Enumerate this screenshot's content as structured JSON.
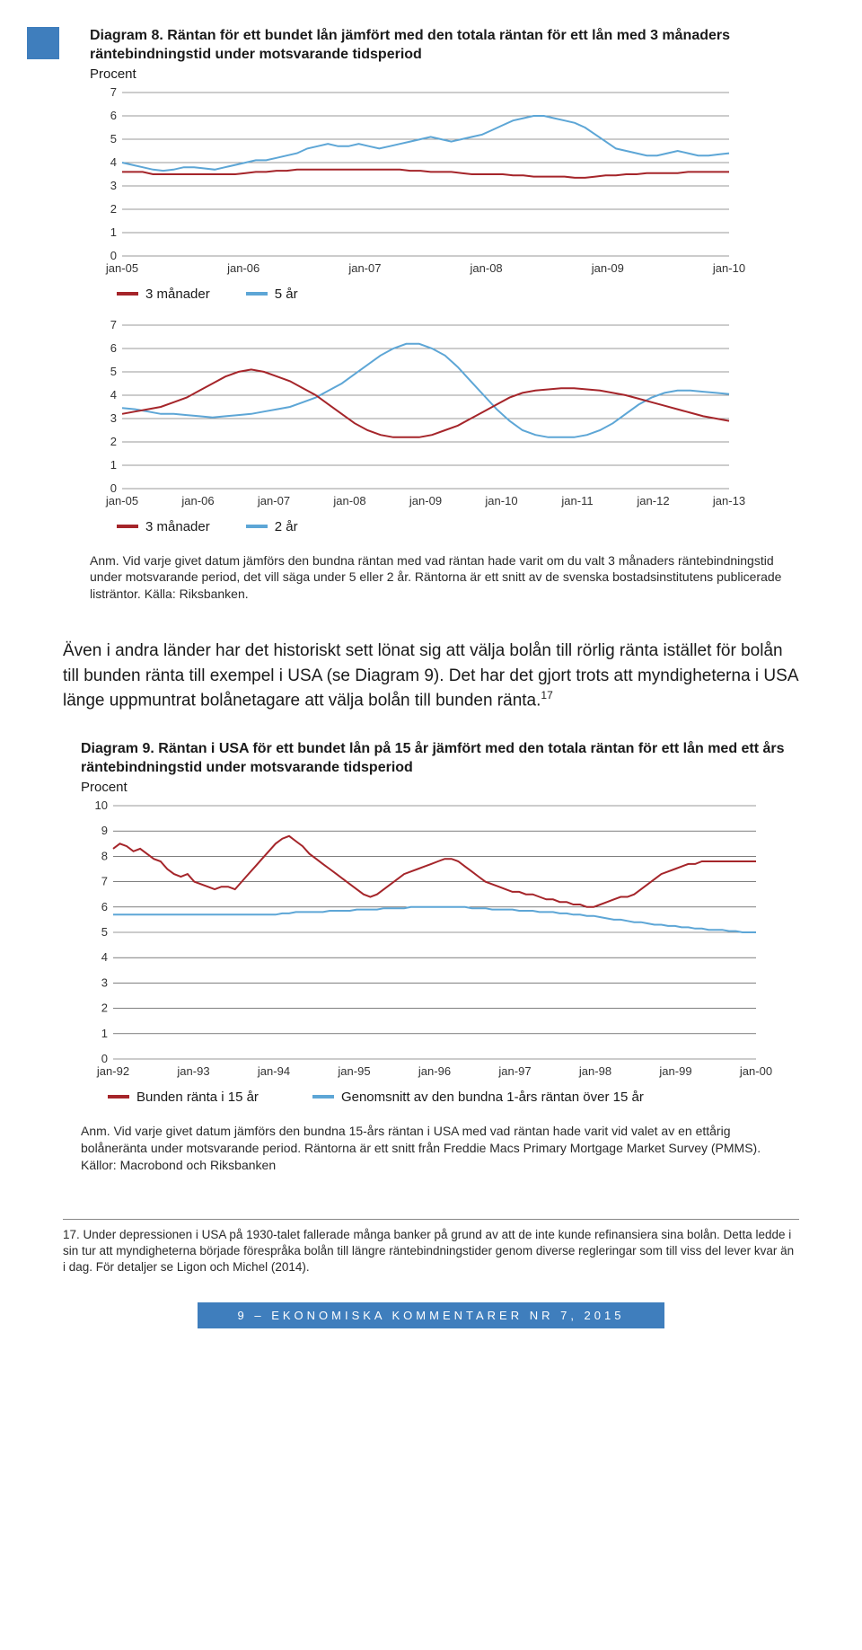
{
  "page": {
    "footer": "9 – EKONOMISKA KOMMENTARER NR 7, 2015",
    "footer_bg": "#3f7ebd"
  },
  "diagram8": {
    "title": "Diagram 8. Räntan för ett bundet lån jämfört med den totala räntan för ett lån med 3 månaders räntebindningstid under motsvarande tidsperiod",
    "subtitle": "Procent",
    "note": "Anm. Vid varje givet datum jämförs den bundna räntan med vad räntan hade varit om du valt 3 månaders räntebindningstid under motsvarande period, det vill säga under 5 eller 2 år. Räntorna är ett snitt av de svenska bostadsinstitutens publicerade listräntor. Källa: Riksbanken.",
    "colors": {
      "red": "#a5252a",
      "blue": "#5da6d6",
      "grid": "#555555",
      "bg": "#ffffff"
    },
    "panelA": {
      "ylim": [
        0,
        7
      ],
      "yticks": [
        0,
        1,
        2,
        3,
        4,
        5,
        6,
        7
      ],
      "xlabels": [
        "jan-05",
        "jan-06",
        "jan-07",
        "jan-08",
        "jan-09",
        "jan-10"
      ],
      "legend": [
        {
          "swatch": "red",
          "label": "3 månader"
        },
        {
          "swatch": "blue",
          "label": "5 år"
        }
      ],
      "red": [
        3.6,
        3.6,
        3.6,
        3.5,
        3.5,
        3.5,
        3.5,
        3.5,
        3.5,
        3.5,
        3.5,
        3.5,
        3.55,
        3.6,
        3.6,
        3.65,
        3.65,
        3.7,
        3.7,
        3.7,
        3.7,
        3.7,
        3.7,
        3.7,
        3.7,
        3.7,
        3.7,
        3.7,
        3.65,
        3.65,
        3.6,
        3.6,
        3.6,
        3.55,
        3.5,
        3.5,
        3.5,
        3.5,
        3.45,
        3.45,
        3.4,
        3.4,
        3.4,
        3.4,
        3.35,
        3.35,
        3.4,
        3.45,
        3.45,
        3.5,
        3.5,
        3.55,
        3.55,
        3.55,
        3.55,
        3.6,
        3.6,
        3.6,
        3.6,
        3.6
      ],
      "blue": [
        4.0,
        3.9,
        3.8,
        3.7,
        3.65,
        3.7,
        3.8,
        3.8,
        3.75,
        3.7,
        3.8,
        3.9,
        4.0,
        4.1,
        4.1,
        4.2,
        4.3,
        4.4,
        4.6,
        4.7,
        4.8,
        4.7,
        4.7,
        4.8,
        4.7,
        4.6,
        4.7,
        4.8,
        4.9,
        5.0,
        5.1,
        5.0,
        4.9,
        5.0,
        5.1,
        5.2,
        5.4,
        5.6,
        5.8,
        5.9,
        6.0,
        6.0,
        5.9,
        5.8,
        5.7,
        5.5,
        5.2,
        4.9,
        4.6,
        4.5,
        4.4,
        4.3,
        4.3,
        4.4,
        4.5,
        4.4,
        4.3,
        4.3,
        4.35,
        4.4
      ]
    },
    "panelB": {
      "ylim": [
        0,
        7
      ],
      "yticks": [
        0,
        1,
        2,
        3,
        4,
        5,
        6,
        7
      ],
      "xlabels": [
        "jan-05",
        "jan-06",
        "jan-07",
        "jan-08",
        "jan-09",
        "jan-10",
        "jan-11",
        "jan-12",
        "jan-13"
      ],
      "legend": [
        {
          "swatch": "red",
          "label": "3 månader"
        },
        {
          "swatch": "blue",
          "label": "2 år"
        }
      ],
      "red": [
        3.2,
        3.3,
        3.4,
        3.5,
        3.7,
        3.9,
        4.2,
        4.5,
        4.8,
        5.0,
        5.1,
        5.0,
        4.8,
        4.6,
        4.3,
        4.0,
        3.6,
        3.2,
        2.8,
        2.5,
        2.3,
        2.2,
        2.2,
        2.2,
        2.3,
        2.5,
        2.7,
        3.0,
        3.3,
        3.6,
        3.9,
        4.1,
        4.2,
        4.25,
        4.3,
        4.3,
        4.25,
        4.2,
        4.1,
        4.0,
        3.85,
        3.7,
        3.55,
        3.4,
        3.25,
        3.1,
        3.0,
        2.9
      ],
      "blue": [
        3.45,
        3.4,
        3.3,
        3.2,
        3.2,
        3.15,
        3.1,
        3.05,
        3.1,
        3.15,
        3.2,
        3.3,
        3.4,
        3.5,
        3.7,
        3.9,
        4.2,
        4.5,
        4.9,
        5.3,
        5.7,
        6.0,
        6.2,
        6.2,
        6.0,
        5.7,
        5.2,
        4.6,
        4.0,
        3.4,
        2.9,
        2.5,
        2.3,
        2.2,
        2.2,
        2.2,
        2.3,
        2.5,
        2.8,
        3.2,
        3.6,
        3.9,
        4.1,
        4.2,
        4.2,
        4.15,
        4.1,
        4.05
      ]
    }
  },
  "prose1": "Även i andra länder har det historiskt sett lönat sig att välja bolån till rörlig ränta istället för bolån till bunden ränta till exempel i USA (se Diagram 9). Det har det gjort trots att myndigheterna i USA länge uppmuntrat bolånetagare att välja bolån till bunden ränta.",
  "prose1_sup": "17",
  "diagram9": {
    "title": "Diagram 9. Räntan i USA för ett bundet lån på 15 år jämfört med den totala räntan för ett lån med ett års räntebindningstid under motsvarande tidsperiod",
    "subtitle": "Procent",
    "ylim": [
      0,
      10
    ],
    "yticks": [
      0,
      1,
      2,
      3,
      4,
      5,
      6,
      7,
      8,
      9,
      10
    ],
    "xlabels": [
      "jan-92",
      "jan-93",
      "jan-94",
      "jan-95",
      "jan-96",
      "jan-97",
      "jan-98",
      "jan-99",
      "jan-00"
    ],
    "colors": {
      "red": "#a5252a",
      "blue": "#5da6d6",
      "grid": "#555555"
    },
    "legend": [
      {
        "swatch": "red",
        "label": "Bunden ränta i 15 år"
      },
      {
        "swatch": "blue",
        "label": "Genomsnitt av den bundna 1-års räntan över 15 år"
      }
    ],
    "red": [
      8.3,
      8.5,
      8.4,
      8.2,
      8.3,
      8.1,
      7.9,
      7.8,
      7.5,
      7.3,
      7.2,
      7.3,
      7.0,
      6.9,
      6.8,
      6.7,
      6.8,
      6.8,
      6.7,
      7.0,
      7.3,
      7.6,
      7.9,
      8.2,
      8.5,
      8.7,
      8.8,
      8.6,
      8.4,
      8.1,
      7.9,
      7.7,
      7.5,
      7.3,
      7.1,
      6.9,
      6.7,
      6.5,
      6.4,
      6.5,
      6.7,
      6.9,
      7.1,
      7.3,
      7.4,
      7.5,
      7.6,
      7.7,
      7.8,
      7.9,
      7.9,
      7.8,
      7.6,
      7.4,
      7.2,
      7.0,
      6.9,
      6.8,
      6.7,
      6.6,
      6.6,
      6.5,
      6.5,
      6.4,
      6.3,
      6.3,
      6.2,
      6.2,
      6.1,
      6.1,
      6.0,
      6.0,
      6.1,
      6.2,
      6.3,
      6.4,
      6.4,
      6.5,
      6.7,
      6.9,
      7.1,
      7.3,
      7.4,
      7.5,
      7.6,
      7.7,
      7.7,
      7.8,
      7.8,
      7.8,
      7.8,
      7.8,
      7.8,
      7.8,
      7.8,
      7.8
    ],
    "blue": [
      5.7,
      5.7,
      5.7,
      5.7,
      5.7,
      5.7,
      5.7,
      5.7,
      5.7,
      5.7,
      5.7,
      5.7,
      5.7,
      5.7,
      5.7,
      5.7,
      5.7,
      5.7,
      5.7,
      5.7,
      5.7,
      5.7,
      5.7,
      5.7,
      5.7,
      5.75,
      5.75,
      5.8,
      5.8,
      5.8,
      5.8,
      5.8,
      5.85,
      5.85,
      5.85,
      5.85,
      5.9,
      5.9,
      5.9,
      5.9,
      5.95,
      5.95,
      5.95,
      5.95,
      6.0,
      6.0,
      6.0,
      6.0,
      6.0,
      6.0,
      6.0,
      6.0,
      6.0,
      5.95,
      5.95,
      5.95,
      5.9,
      5.9,
      5.9,
      5.9,
      5.85,
      5.85,
      5.85,
      5.8,
      5.8,
      5.8,
      5.75,
      5.75,
      5.7,
      5.7,
      5.65,
      5.65,
      5.6,
      5.55,
      5.5,
      5.5,
      5.45,
      5.4,
      5.4,
      5.35,
      5.3,
      5.3,
      5.25,
      5.25,
      5.2,
      5.2,
      5.15,
      5.15,
      5.1,
      5.1,
      5.1,
      5.05,
      5.05,
      5.0,
      5.0,
      5.0
    ],
    "note": "Anm. Vid varje givet datum jämförs den bundna 15-års räntan i USA med vad räntan hade varit vid valet av en ettårig bolåneränta under motsvarande period. Räntorna är ett snitt från Freddie Macs Primary Mortgage Market Survey (PMMS). Källor: Macrobond och Riksbanken"
  },
  "footnote17": "17. Under depressionen i USA på 1930-talet fallerade många banker på grund av att de inte kunde refinansiera sina bolån. Detta ledde i sin tur att myndigheterna började förespråka bolån till längre räntebindningstider genom diverse regleringar som till viss del lever kvar än i dag. För detaljer se Ligon och Michel (2014)."
}
